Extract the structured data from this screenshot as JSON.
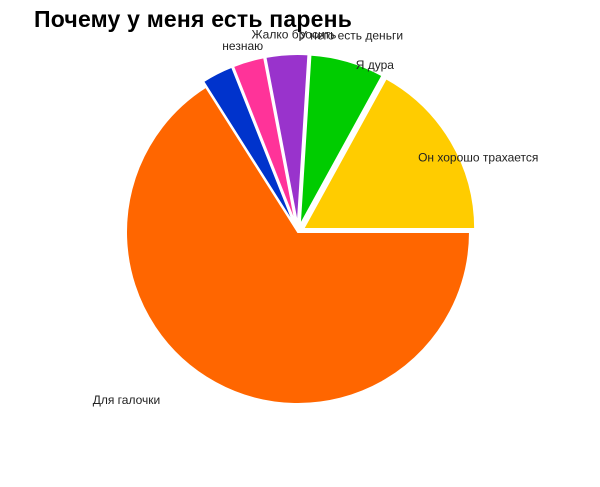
{
  "chart_data": {
    "type": "pie",
    "title": "Почему у меня есть парень",
    "legend": "none",
    "slices": [
      {
        "label": "Для галочки",
        "value": 66,
        "color": "#ff6600",
        "exploded": false
      },
      {
        "label": "незнаю",
        "value": 3,
        "color": "#0033cc",
        "exploded": true
      },
      {
        "label": "Жалко бросить",
        "value": 3,
        "color": "#ff3399",
        "exploded": true
      },
      {
        "label": "У него есть деньги",
        "value": 4,
        "color": "#9933cc",
        "exploded": true
      },
      {
        "label": "Я дура",
        "value": 7,
        "color": "#00cc00",
        "exploded": true
      },
      {
        "label": "Он хорошо трахается",
        "value": 17,
        "color": "#ffcc00",
        "exploded": true
      }
    ]
  }
}
